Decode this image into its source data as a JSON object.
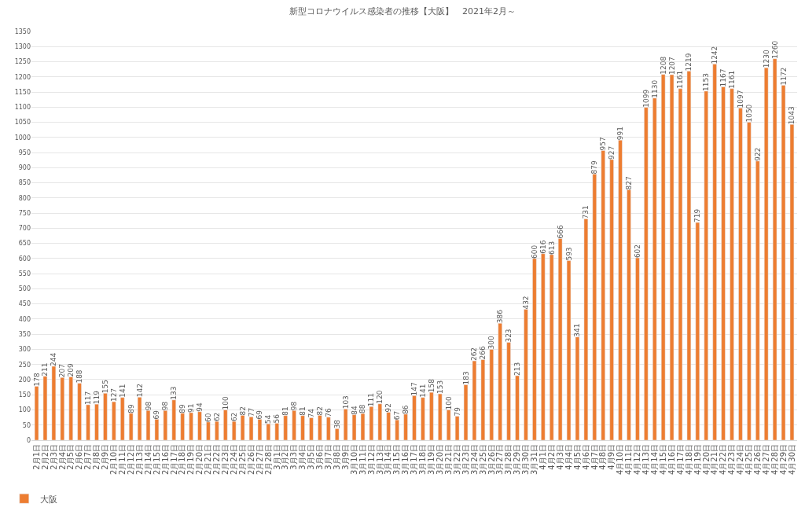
{
  "chart_data": {
    "type": "bar",
    "title": "新型コロナウイルス感染者の推移【大阪】　2021年2月～",
    "categories": [
      "2月1日",
      "2月2日",
      "2月3日",
      "2月4日",
      "2月5日",
      "2月6日",
      "2月7日",
      "2月8日",
      "2月9日",
      "2月10日",
      "2月11日",
      "2月12日",
      "2月13日",
      "2月14日",
      "2月15日",
      "2月16日",
      "2月17日",
      "2月18日",
      "2月19日",
      "2月20日",
      "2月21日",
      "2月22日",
      "2月23日",
      "2月24日",
      "2月25日",
      "2月26日",
      "2月27日",
      "2月28日",
      "3月1日",
      "3月2日",
      "3月3日",
      "3月4日",
      "3月5日",
      "3月6日",
      "3月7日",
      "3月8日",
      "3月9日",
      "3月10日",
      "3月11日",
      "3月12日",
      "3月13日",
      "3月14日",
      "3月15日",
      "3月16日",
      "3月17日",
      "3月18日",
      "3月19日",
      "3月20日",
      "3月21日",
      "3月22日",
      "3月23日",
      "3月24日",
      "3月25日",
      "3月26日",
      "3月27日",
      "3月28日",
      "3月29日",
      "3月30日",
      "3月31日",
      "4月1日",
      "4月2日",
      "4月3日",
      "4月4日",
      "4月5日",
      "4月6日",
      "4月7日",
      "4月8日",
      "4月9日",
      "4月10日",
      "4月11日",
      "4月12日",
      "4月13日",
      "4月14日",
      "4月15日",
      "4月16日",
      "4月17日",
      "4月18日",
      "4月19日",
      "4月20日",
      "4月21日",
      "4月22日",
      "4月23日",
      "4月24日",
      "4月25日",
      "4月26日",
      "4月27日",
      "4月28日",
      "4月29日",
      "4月30日"
    ],
    "series": [
      {
        "name": "大阪",
        "color": "#ed7d31",
        "values": [
          178,
          211,
          244,
          207,
          209,
          188,
          117,
          119,
          155,
          127,
          141,
          89,
          142,
          98,
          69,
          98,
          133,
          89,
          91,
          94,
          60,
          62,
          100,
          62,
          82,
          77,
          69,
          54,
          56,
          81,
          98,
          81,
          74,
          82,
          76,
          38,
          103,
          84,
          88,
          111,
          120,
          92,
          67,
          86,
          147,
          141,
          158,
          153,
          100,
          79,
          183,
          262,
          266,
          300,
          386,
          323,
          213,
          432,
          600,
          616,
          613,
          666,
          593,
          341,
          731,
          879,
          957,
          927,
          991,
          827,
          602,
          1099,
          1130,
          1208,
          1207,
          1161,
          1219,
          719,
          1153,
          1242,
          1167,
          1161,
          1097,
          1050,
          922,
          1230,
          1260,
          1172,
          1043
        ]
      }
    ],
    "ylim": [
      0,
      1350
    ],
    "yticks": [
      0,
      50,
      100,
      150,
      200,
      250,
      300,
      350,
      400,
      450,
      500,
      550,
      600,
      650,
      700,
      750,
      800,
      850,
      900,
      950,
      1000,
      1050,
      1100,
      1150,
      1200,
      1250,
      1300,
      1350
    ],
    "grid": "y",
    "data_labels": true,
    "legend": "bottom left"
  }
}
